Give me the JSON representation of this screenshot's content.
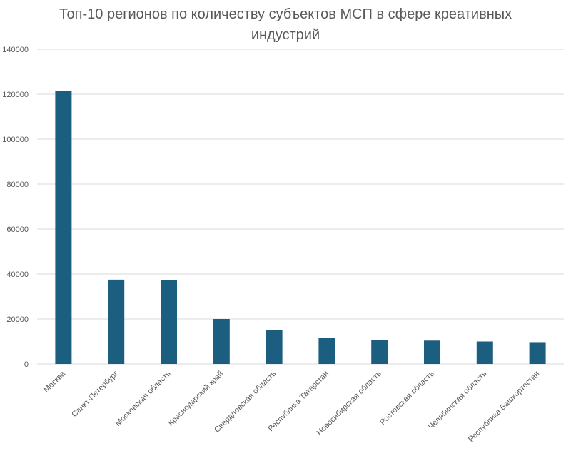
{
  "chart_data": {
    "type": "bar",
    "title": "Топ-10 регионов по количеству субъектов МСП в сфере креативных индустрий",
    "xlabel": "",
    "ylabel": "",
    "categories": [
      "Москва",
      "Санкт-Петербург",
      "Московская область",
      "Краснодарский край",
      "Свердловская область",
      "Республика Татарстан",
      "Новосибирская область",
      "Ростовская область",
      "Челябинская область",
      "Республика Башкортостан"
    ],
    "values": [
      121500,
      37500,
      37300,
      20000,
      15200,
      11700,
      10700,
      10400,
      10000,
      9700
    ],
    "ylim": [
      0,
      140000
    ],
    "yticks": [
      "0",
      "20000",
      "40000",
      "60000",
      "80000",
      "100000",
      "120000",
      "140000"
    ],
    "grid": true,
    "legend": "none",
    "colors": {
      "bar": "#1b5e80",
      "grid": "#d9d9d9",
      "text": "#595959"
    }
  }
}
